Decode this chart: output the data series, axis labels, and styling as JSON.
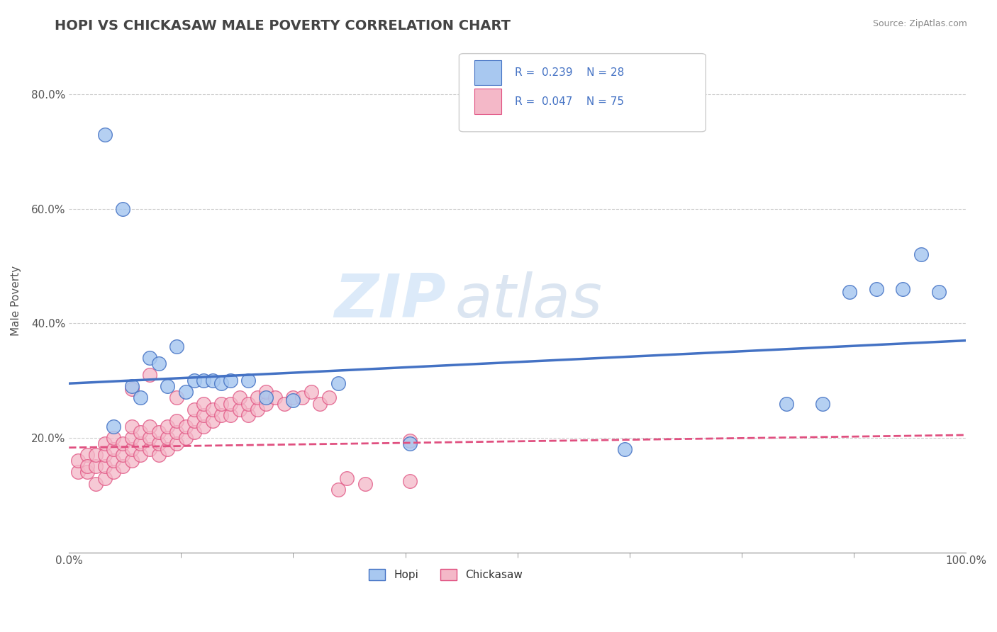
{
  "title": "HOPI VS CHICKASAW MALE POVERTY CORRELATION CHART",
  "source": "Source: ZipAtlas.com",
  "ylabel": "Male Poverty",
  "hopi_color": "#a8c8f0",
  "chickasaw_color": "#f4b8c8",
  "hopi_line_color": "#4472c4",
  "chickasaw_line_color": "#e05080",
  "legend_R_hopi": "R = 0.239",
  "legend_N_hopi": "N = 28",
  "legend_R_chickasaw": "R = 0.047",
  "legend_N_chickasaw": "N = 75",
  "watermark_zip": "ZIP",
  "watermark_atlas": "atlas",
  "hopi_scatter_x": [
    0.04,
    0.05,
    0.06,
    0.07,
    0.08,
    0.09,
    0.1,
    0.11,
    0.12,
    0.13,
    0.14,
    0.15,
    0.16,
    0.17,
    0.18,
    0.2,
    0.22,
    0.25,
    0.3,
    0.38,
    0.62,
    0.8,
    0.84,
    0.87,
    0.9,
    0.93,
    0.95,
    0.97
  ],
  "hopi_scatter_y": [
    0.73,
    0.22,
    0.6,
    0.29,
    0.27,
    0.34,
    0.33,
    0.29,
    0.36,
    0.28,
    0.3,
    0.3,
    0.3,
    0.295,
    0.3,
    0.3,
    0.27,
    0.265,
    0.295,
    0.19,
    0.18,
    0.26,
    0.26,
    0.455,
    0.46,
    0.46,
    0.52,
    0.455
  ],
  "chickasaw_scatter_x": [
    0.01,
    0.01,
    0.02,
    0.02,
    0.02,
    0.03,
    0.03,
    0.03,
    0.04,
    0.04,
    0.04,
    0.04,
    0.05,
    0.05,
    0.05,
    0.05,
    0.06,
    0.06,
    0.06,
    0.07,
    0.07,
    0.07,
    0.07,
    0.08,
    0.08,
    0.08,
    0.09,
    0.09,
    0.09,
    0.1,
    0.1,
    0.1,
    0.11,
    0.11,
    0.11,
    0.12,
    0.12,
    0.12,
    0.13,
    0.13,
    0.14,
    0.14,
    0.14,
    0.15,
    0.15,
    0.15,
    0.16,
    0.16,
    0.17,
    0.17,
    0.18,
    0.18,
    0.19,
    0.19,
    0.2,
    0.2,
    0.21,
    0.21,
    0.22,
    0.22,
    0.23,
    0.24,
    0.25,
    0.26,
    0.27,
    0.28,
    0.29,
    0.3,
    0.31,
    0.33,
    0.07,
    0.09,
    0.12,
    0.38,
    0.38
  ],
  "chickasaw_scatter_y": [
    0.14,
    0.16,
    0.14,
    0.17,
    0.15,
    0.12,
    0.15,
    0.17,
    0.13,
    0.15,
    0.17,
    0.19,
    0.14,
    0.16,
    0.18,
    0.2,
    0.15,
    0.17,
    0.19,
    0.16,
    0.18,
    0.2,
    0.22,
    0.17,
    0.19,
    0.21,
    0.18,
    0.2,
    0.22,
    0.17,
    0.19,
    0.21,
    0.18,
    0.2,
    0.22,
    0.19,
    0.21,
    0.23,
    0.2,
    0.22,
    0.21,
    0.23,
    0.25,
    0.22,
    0.24,
    0.26,
    0.23,
    0.25,
    0.24,
    0.26,
    0.24,
    0.26,
    0.25,
    0.27,
    0.24,
    0.26,
    0.25,
    0.27,
    0.26,
    0.28,
    0.27,
    0.26,
    0.27,
    0.27,
    0.28,
    0.26,
    0.27,
    0.11,
    0.13,
    0.12,
    0.285,
    0.31,
    0.27,
    0.195,
    0.125
  ],
  "background_color": "#ffffff",
  "plot_bg_color": "#ffffff",
  "grid_color": "#cccccc",
  "title_fontsize": 14,
  "axis_label_fontsize": 11,
  "tick_fontsize": 11
}
